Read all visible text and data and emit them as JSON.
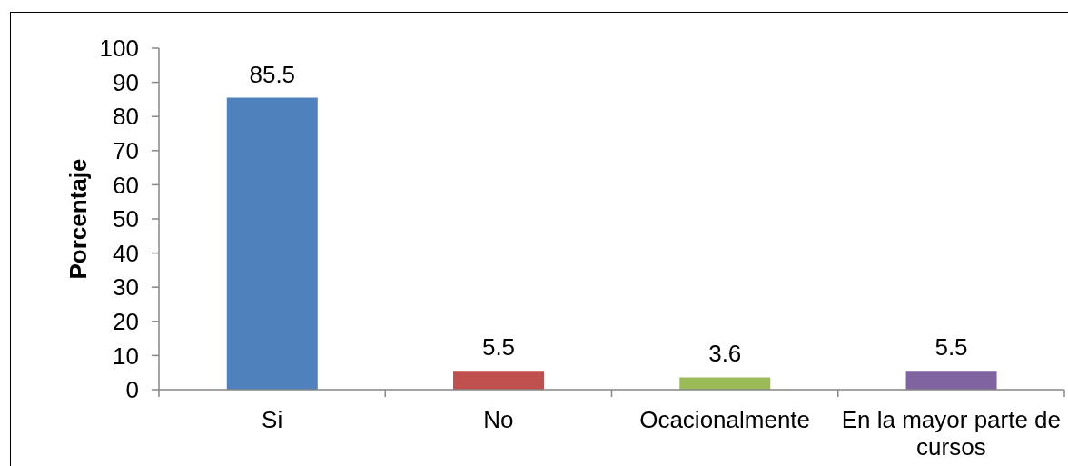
{
  "chart_data": {
    "type": "bar",
    "ylabel": "Porcentaje",
    "categories": [
      "Si",
      "No",
      "Ocacionalmente",
      "En la mayor parte de cursos"
    ],
    "values": [
      85.5,
      5.5,
      3.6,
      5.5
    ],
    "colors": [
      "#4f81bd",
      "#c0504d",
      "#9bbb59",
      "#8064a2"
    ],
    "ylim": [
      0,
      100
    ],
    "yticks": [
      0,
      10,
      20,
      30,
      40,
      50,
      60,
      70,
      80,
      90,
      100
    ],
    "data_labels": true
  }
}
